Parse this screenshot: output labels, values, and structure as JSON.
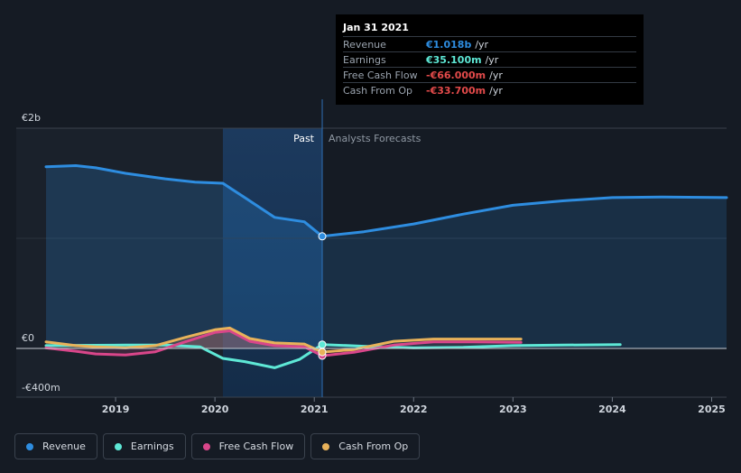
{
  "chart_data": {
    "type": "line",
    "y_unit": "€m",
    "y_tick_labels": [
      {
        "value": 2000,
        "label": "€2b"
      },
      {
        "value": 0,
        "label": "€0"
      },
      {
        "value": -400,
        "label": "-€400m"
      }
    ],
    "ylim": [
      -400,
      2000
    ],
    "xlim": [
      2018.0,
      2025.15
    ],
    "x_ticks": [
      {
        "value": 2019,
        "label": "2019"
      },
      {
        "value": 2020,
        "label": "2020"
      },
      {
        "value": 2021,
        "label": "2021"
      },
      {
        "value": 2022,
        "label": "2022"
      },
      {
        "value": 2023,
        "label": "2023"
      },
      {
        "value": 2024,
        "label": "2024"
      },
      {
        "value": 2025,
        "label": "2025"
      }
    ],
    "past_label": "Past",
    "forecast_label": "Analysts Forecasts",
    "divider_x": 2021.08,
    "highlight_start": 2020.08,
    "series": [
      {
        "name": "Revenue",
        "color": "#2e8de0",
        "area": true,
        "legend": "Revenue",
        "past": [
          [
            2018.3,
            1650
          ],
          [
            2018.6,
            1660
          ],
          [
            2018.8,
            1640
          ],
          [
            2019.1,
            1590
          ],
          [
            2019.5,
            1540
          ],
          [
            2019.8,
            1510
          ],
          [
            2020.08,
            1500
          ],
          [
            2020.3,
            1370
          ],
          [
            2020.6,
            1190
          ],
          [
            2020.9,
            1150
          ],
          [
            2021.08,
            1018
          ]
        ],
        "forecast": [
          [
            2021.08,
            1018
          ],
          [
            2021.5,
            1060
          ],
          [
            2022.0,
            1130
          ],
          [
            2022.5,
            1220
          ],
          [
            2023.0,
            1300
          ],
          [
            2023.5,
            1340
          ],
          [
            2024.0,
            1370
          ],
          [
            2024.5,
            1375
          ],
          [
            2025.15,
            1370
          ]
        ]
      },
      {
        "name": "Earnings",
        "color": "#5ee8d6",
        "area": false,
        "legend": "Earnings",
        "past": [
          [
            2018.3,
            25
          ],
          [
            2018.6,
            28
          ],
          [
            2019.1,
            30
          ],
          [
            2019.5,
            30
          ],
          [
            2019.85,
            15
          ],
          [
            2020.08,
            -90
          ],
          [
            2020.3,
            -120
          ],
          [
            2020.6,
            -175
          ],
          [
            2020.85,
            -100
          ],
          [
            2021.08,
            35.1
          ]
        ],
        "forecast": [
          [
            2021.08,
            35.1
          ],
          [
            2021.5,
            20
          ],
          [
            2022.0,
            5
          ],
          [
            2022.5,
            10
          ],
          [
            2023.0,
            25
          ],
          [
            2023.5,
            30
          ],
          [
            2024.08,
            35
          ]
        ]
      },
      {
        "name": "Free Cash Flow",
        "color": "#d9468a",
        "area": true,
        "legend": "Free Cash Flow",
        "past": [
          [
            2018.3,
            5
          ],
          [
            2018.6,
            -25
          ],
          [
            2018.8,
            -50
          ],
          [
            2019.1,
            -60
          ],
          [
            2019.4,
            -30
          ],
          [
            2019.7,
            60
          ],
          [
            2020.0,
            145
          ],
          [
            2020.15,
            160
          ],
          [
            2020.35,
            65
          ],
          [
            2020.6,
            25
          ],
          [
            2020.9,
            15
          ],
          [
            2021.08,
            -66
          ]
        ],
        "forecast": [
          [
            2021.08,
            -66
          ],
          [
            2021.4,
            -35
          ],
          [
            2021.8,
            30
          ],
          [
            2022.2,
            60
          ],
          [
            2022.6,
            60
          ],
          [
            2023.08,
            55
          ]
        ]
      },
      {
        "name": "Cash From Op",
        "color": "#e8b25a",
        "area": true,
        "legend": "Cash From Op",
        "past": [
          [
            2018.3,
            60
          ],
          [
            2018.6,
            25
          ],
          [
            2018.8,
            15
          ],
          [
            2019.1,
            5
          ],
          [
            2019.4,
            25
          ],
          [
            2019.7,
            100
          ],
          [
            2020.0,
            170
          ],
          [
            2020.15,
            185
          ],
          [
            2020.35,
            90
          ],
          [
            2020.6,
            50
          ],
          [
            2020.9,
            40
          ],
          [
            2021.08,
            -33.7
          ]
        ],
        "forecast": [
          [
            2021.08,
            -33.7
          ],
          [
            2021.4,
            -10
          ],
          [
            2021.8,
            65
          ],
          [
            2022.2,
            85
          ],
          [
            2022.6,
            85
          ],
          [
            2023.08,
            85
          ]
        ]
      }
    ]
  },
  "tooltip": {
    "date": "Jan 31 2021",
    "rows": [
      {
        "label": "Revenue",
        "value": "€1.018b",
        "unit": "/yr",
        "color": "#2e8de0"
      },
      {
        "label": "Earnings",
        "value": "€35.100m",
        "unit": "/yr",
        "color": "#5ee8d6"
      },
      {
        "label": "Free Cash Flow",
        "value": "-€66.000m",
        "unit": "/yr",
        "color": "#e24a4a"
      },
      {
        "label": "Cash From Op",
        "value": "-€33.700m",
        "unit": "/yr",
        "color": "#e24a4a"
      }
    ]
  },
  "legend": [
    {
      "label": "Revenue",
      "color": "#2e8de0"
    },
    {
      "label": "Earnings",
      "color": "#5ee8d6"
    },
    {
      "label": "Free Cash Flow",
      "color": "#d9468a"
    },
    {
      "label": "Cash From Op",
      "color": "#e8b25a"
    }
  ]
}
